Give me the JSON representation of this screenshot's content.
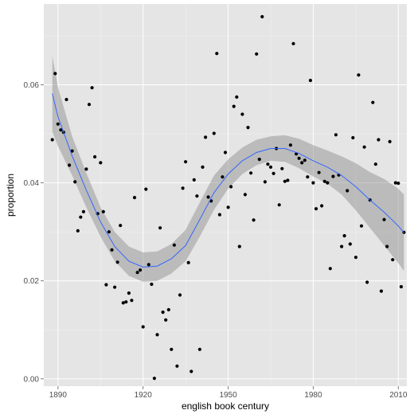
{
  "chart_data": {
    "type": "scatter",
    "xlabel": "english book century",
    "ylabel": "proportion",
    "xlim": [
      1885,
      2013
    ],
    "ylim": [
      -0.0015,
      0.0765
    ],
    "x_ticks": [
      1890,
      1920,
      1950,
      1980,
      2010
    ],
    "y_ticks": [
      0.0,
      0.02,
      0.04,
      0.06
    ],
    "x_tick_labels": [
      "1890",
      "1920",
      "1950",
      "1980",
      "2010"
    ],
    "y_tick_labels": [
      "0.00",
      "0.02",
      "0.04",
      "0.06"
    ],
    "grid": true,
    "colors": {
      "panel": "#e5e5e5",
      "grid": "#ffffff",
      "points": "#000000",
      "smooth_line": "#3366ff",
      "ribbon": "#999999"
    },
    "points": [
      [
        1888,
        0.0488
      ],
      [
        1889,
        0.0623
      ],
      [
        1890,
        0.052
      ],
      [
        1891,
        0.0508
      ],
      [
        1892,
        0.0503
      ],
      [
        1893,
        0.057
      ],
      [
        1894,
        0.0436
      ],
      [
        1895,
        0.0465
      ],
      [
        1896,
        0.0402
      ],
      [
        1897,
        0.0302
      ],
      [
        1898,
        0.033
      ],
      [
        1899,
        0.0341
      ],
      [
        1900,
        0.0428
      ],
      [
        1901,
        0.056
      ],
      [
        1902,
        0.0594
      ],
      [
        1903,
        0.0453
      ],
      [
        1904,
        0.0337
      ],
      [
        1905,
        0.0441
      ],
      [
        1906,
        0.0341
      ],
      [
        1907,
        0.0192
      ],
      [
        1908,
        0.03
      ],
      [
        1909,
        0.0263
      ],
      [
        1910,
        0.0187
      ],
      [
        1911,
        0.0238
      ],
      [
        1912,
        0.0313
      ],
      [
        1913,
        0.0155
      ],
      [
        1914,
        0.0157
      ],
      [
        1915,
        0.0175
      ],
      [
        1916,
        0.016
      ],
      [
        1917,
        0.037
      ],
      [
        1918,
        0.0217
      ],
      [
        1919,
        0.0222
      ],
      [
        1920,
        0.0106
      ],
      [
        1921,
        0.0387
      ],
      [
        1922,
        0.0233
      ],
      [
        1923,
        0.0193
      ],
      [
        1924,
        0.0001
      ],
      [
        1925,
        0.009
      ],
      [
        1926,
        0.0308
      ],
      [
        1927,
        0.0136
      ],
      [
        1928,
        0.012
      ],
      [
        1929,
        0.0141
      ],
      [
        1930,
        0.006
      ],
      [
        1931,
        0.0273
      ],
      [
        1932,
        0.0026
      ],
      [
        1933,
        0.0171
      ],
      [
        1934,
        0.0389
      ],
      [
        1935,
        0.0443
      ],
      [
        1936,
        0.0237
      ],
      [
        1937,
        0.0015
      ],
      [
        1938,
        0.0406
      ],
      [
        1939,
        0.0373
      ],
      [
        1940,
        0.006
      ],
      [
        1941,
        0.0432
      ],
      [
        1942,
        0.0493
      ],
      [
        1943,
        0.0371
      ],
      [
        1944,
        0.0363
      ],
      [
        1945,
        0.0501
      ],
      [
        1946,
        0.0664
      ],
      [
        1947,
        0.0335
      ],
      [
        1948,
        0.0412
      ],
      [
        1949,
        0.0462
      ],
      [
        1950,
        0.035
      ],
      [
        1951,
        0.0392
      ],
      [
        1952,
        0.0556
      ],
      [
        1953,
        0.0575
      ],
      [
        1954,
        0.027
      ],
      [
        1955,
        0.054
      ],
      [
        1956,
        0.0376
      ],
      [
        1957,
        0.0513
      ],
      [
        1958,
        0.042
      ],
      [
        1959,
        0.0324
      ],
      [
        1960,
        0.0663
      ],
      [
        1961,
        0.0448
      ],
      [
        1962,
        0.0739
      ],
      [
        1963,
        0.0402
      ],
      [
        1964,
        0.0438
      ],
      [
        1965,
        0.0432
      ],
      [
        1966,
        0.0419
      ],
      [
        1967,
        0.047
      ],
      [
        1968,
        0.0355
      ],
      [
        1969,
        0.0429
      ],
      [
        1970,
        0.0403
      ],
      [
        1971,
        0.0405
      ],
      [
        1972,
        0.0477
      ],
      [
        1973,
        0.0684
      ],
      [
        1974,
        0.0459
      ],
      [
        1975,
        0.045
      ],
      [
        1976,
        0.0441
      ],
      [
        1977,
        0.0446
      ],
      [
        1978,
        0.0412
      ],
      [
        1979,
        0.0609
      ],
      [
        1980,
        0.04
      ],
      [
        1981,
        0.0347
      ],
      [
        1982,
        0.0421
      ],
      [
        1983,
        0.0353
      ],
      [
        1984,
        0.0403
      ],
      [
        1985,
        0.04
      ],
      [
        1986,
        0.0225
      ],
      [
        1987,
        0.0413
      ],
      [
        1988,
        0.0498
      ],
      [
        1989,
        0.0416
      ],
      [
        1990,
        0.027
      ],
      [
        1991,
        0.0292
      ],
      [
        1992,
        0.0384
      ],
      [
        1993,
        0.0275
      ],
      [
        1994,
        0.0492
      ],
      [
        1995,
        0.0248
      ],
      [
        1996,
        0.062
      ],
      [
        1997,
        0.0312
      ],
      [
        1998,
        0.0473
      ],
      [
        1999,
        0.0197
      ],
      [
        2000,
        0.0365
      ],
      [
        2001,
        0.0564
      ],
      [
        2002,
        0.0438
      ],
      [
        2003,
        0.0488
      ],
      [
        2004,
        0.0179
      ],
      [
        2005,
        0.0325
      ],
      [
        2006,
        0.027
      ],
      [
        2007,
        0.0484
      ],
      [
        2008,
        0.0243
      ],
      [
        2009,
        0.04
      ],
      [
        2010,
        0.0399
      ],
      [
        2011,
        0.0188
      ],
      [
        2012,
        0.0299
      ]
    ],
    "smooth": {
      "x": [
        1888,
        1890,
        1895,
        1900,
        1905,
        1910,
        1915,
        1920,
        1925,
        1930,
        1935,
        1940,
        1945,
        1950,
        1955,
        1960,
        1965,
        1970,
        1975,
        1980,
        1985,
        1990,
        1995,
        2000,
        2005,
        2010,
        2012
      ],
      "y": [
        0.0582,
        0.0535,
        0.0455,
        0.0385,
        0.032,
        0.027,
        0.024,
        0.0228,
        0.023,
        0.0245,
        0.0272,
        0.0325,
        0.038,
        0.0418,
        0.0445,
        0.0462,
        0.047,
        0.047,
        0.046,
        0.0445,
        0.0432,
        0.0415,
        0.0392,
        0.0365,
        0.034,
        0.0312,
        0.0298
      ],
      "lower": [
        0.0505,
        0.0475,
        0.0415,
        0.035,
        0.029,
        0.024,
        0.021,
        0.0198,
        0.02,
        0.0215,
        0.024,
        0.029,
        0.0345,
        0.0388,
        0.0418,
        0.0436,
        0.0445,
        0.0443,
        0.043,
        0.0413,
        0.0398,
        0.0376,
        0.0344,
        0.0308,
        0.0272,
        0.0236,
        0.022
      ],
      "upper": [
        0.0659,
        0.0595,
        0.0495,
        0.042,
        0.035,
        0.03,
        0.027,
        0.0258,
        0.026,
        0.0275,
        0.0304,
        0.036,
        0.0415,
        0.0448,
        0.0472,
        0.0488,
        0.0495,
        0.0497,
        0.049,
        0.0477,
        0.0466,
        0.0454,
        0.044,
        0.0422,
        0.0408,
        0.0388,
        0.0376
      ]
    }
  }
}
